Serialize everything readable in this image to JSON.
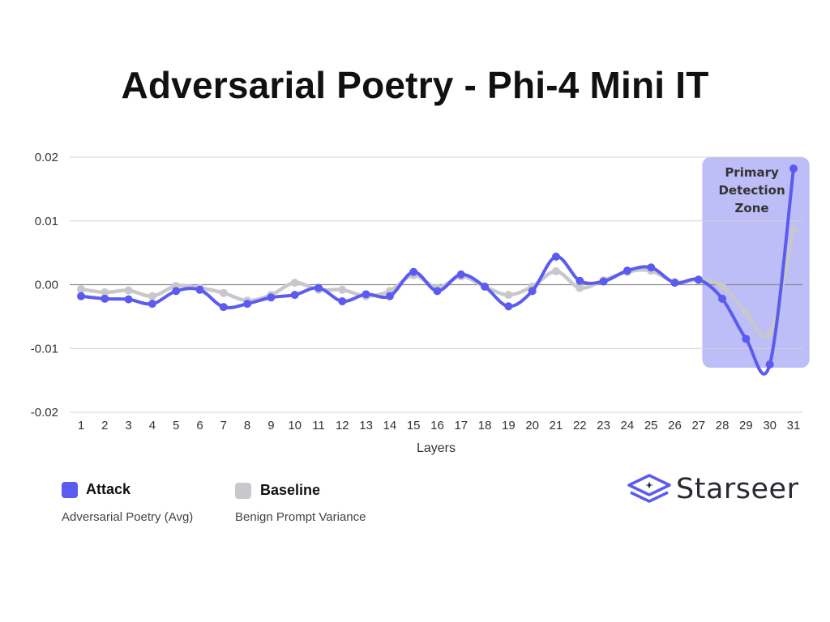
{
  "title": "Adversarial Poetry - Phi-4 Mini IT",
  "chart_data": {
    "type": "line",
    "x": [
      1,
      2,
      3,
      4,
      5,
      6,
      7,
      8,
      9,
      10,
      11,
      12,
      13,
      14,
      15,
      16,
      17,
      18,
      19,
      20,
      21,
      22,
      23,
      24,
      25,
      26,
      27,
      28,
      29,
      30,
      31
    ],
    "xlabel": "Layers",
    "ylabel": "",
    "ylim": [
      -0.02,
      0.02
    ],
    "yticks": [
      "0.02",
      "0.01",
      "0.00",
      "-0.01",
      "-0.02"
    ],
    "grid": true,
    "series": [
      {
        "name": "Attack",
        "color": "#5b5bf0",
        "values": [
          -0.0018,
          -0.0022,
          -0.0023,
          -0.003,
          -0.001,
          -0.0008,
          -0.0035,
          -0.003,
          -0.002,
          -0.0016,
          -0.0005,
          -0.0026,
          -0.0015,
          -0.0018,
          0.002,
          -0.001,
          0.0016,
          -0.0003,
          -0.0034,
          -0.001,
          0.0044,
          0.0006,
          0.0005,
          0.0022,
          0.0027,
          0.0003,
          0.0008,
          -0.0022,
          -0.0085,
          -0.0125,
          0.0182
        ]
      },
      {
        "name": "Baseline",
        "color": "#c8c8cc",
        "values": [
          -0.0007,
          -0.0012,
          -0.0009,
          -0.0018,
          -0.0002,
          -0.0005,
          -0.0013,
          -0.0025,
          -0.0016,
          0.0003,
          -0.0008,
          -0.0008,
          -0.0018,
          -0.001,
          0.0015,
          -0.0005,
          0.0013,
          -0.0003,
          -0.0016,
          -0.0003,
          0.0021,
          -0.0005,
          0.0007,
          0.002,
          0.0022,
          0.0004,
          0.0007,
          -0.0002,
          -0.0044,
          -0.0076,
          0.0086
        ]
      }
    ],
    "highlight": {
      "label_lines": [
        "Primary",
        "Detection",
        "Zone"
      ],
      "x_range": [
        27.5,
        31.5
      ],
      "color": "#b9b9f8"
    }
  },
  "legend": [
    {
      "name": "Attack",
      "description": "Adversarial Poetry (Avg)",
      "color": "#5b5bf0"
    },
    {
      "name": "Baseline",
      "description": "Benign Prompt Variance",
      "color": "#c8c8cc"
    }
  ],
  "brand": {
    "name": "Starseer",
    "icon": "layered-diamond-logo-icon",
    "color": "#5b5bf0"
  }
}
